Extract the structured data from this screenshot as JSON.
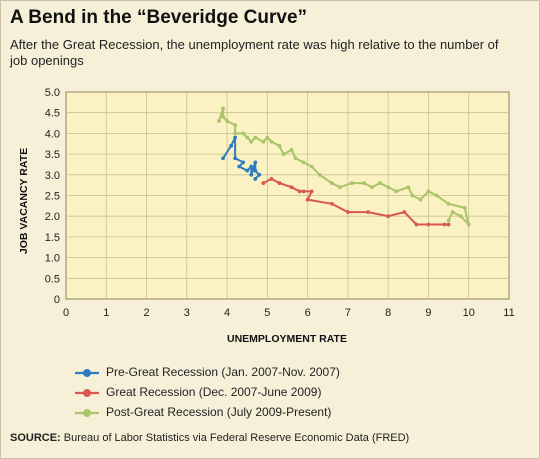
{
  "header": {
    "title": "A Bend in the “Beveridge Curve”",
    "subtitle": "After the Great Recession, the unemployment rate was high relative to the number of job openings"
  },
  "source": {
    "label": "SOURCE:",
    "text": "Bureau of Labor Statistics via Federal Reserve Economic Data (FRED)"
  },
  "colors": {
    "panel": "#f6f0d9",
    "plot": "#faf2c2",
    "grid": "#c9c08e",
    "pre": "#2e7bbf",
    "great": "#d9574f",
    "post": "#a9c46a"
  },
  "chart_data": {
    "type": "line",
    "xlabel": "UNEMPLOYMENT RATE",
    "ylabel": "JOB VACANCY RATE",
    "xlim": [
      0,
      11
    ],
    "ylim": [
      0,
      5.0
    ],
    "xticks": [
      "0",
      "1",
      "2",
      "3",
      "4",
      "5",
      "6",
      "7",
      "8",
      "9",
      "10",
      "11"
    ],
    "yticks": [
      "0",
      "0.5",
      "1.0",
      "1.5",
      "2.0",
      "2.5",
      "3.0",
      "3.5",
      "4.0",
      "4.5",
      "5.0"
    ],
    "grid": true,
    "legend_position": "bottom",
    "series": [
      {
        "name": "Pre-Great Recession (Jan. 2007-Nov. 2007)",
        "color": "#2e7bbf",
        "points": [
          [
            3.9,
            3.4
          ],
          [
            4.1,
            3.7
          ],
          [
            4.2,
            3.9
          ],
          [
            4.2,
            3.4
          ],
          [
            4.4,
            3.3
          ],
          [
            4.3,
            3.2
          ],
          [
            4.5,
            3.1
          ],
          [
            4.6,
            3.2
          ],
          [
            4.6,
            3.0
          ],
          [
            4.7,
            3.3
          ],
          [
            4.7,
            3.1
          ],
          [
            4.8,
            3.0
          ],
          [
            4.7,
            2.9
          ]
        ]
      },
      {
        "name": "Great Recession (Dec. 2007-June 2009)",
        "color": "#d9574f",
        "points": [
          [
            4.9,
            2.8
          ],
          [
            5.1,
            2.9
          ],
          [
            5.3,
            2.8
          ],
          [
            5.6,
            2.7
          ],
          [
            5.8,
            2.6
          ],
          [
            5.9,
            2.6
          ],
          [
            6.1,
            2.6
          ],
          [
            6.0,
            2.4
          ],
          [
            6.6,
            2.3
          ],
          [
            7.0,
            2.1
          ],
          [
            7.5,
            2.1
          ],
          [
            8.0,
            2.0
          ],
          [
            8.4,
            2.1
          ],
          [
            8.7,
            1.8
          ],
          [
            9.0,
            1.8
          ],
          [
            9.4,
            1.8
          ],
          [
            9.5,
            1.8
          ]
        ]
      },
      {
        "name": "Post-Great Recession (July 2009-Present)",
        "color": "#a9c46a",
        "points": [
          [
            9.5,
            1.9
          ],
          [
            9.6,
            2.1
          ],
          [
            9.8,
            2.0
          ],
          [
            10.0,
            1.8
          ],
          [
            9.9,
            2.2
          ],
          [
            9.5,
            2.3
          ],
          [
            9.2,
            2.5
          ],
          [
            9.0,
            2.6
          ],
          [
            8.8,
            2.4
          ],
          [
            8.6,
            2.5
          ],
          [
            8.5,
            2.7
          ],
          [
            8.2,
            2.6
          ],
          [
            8.0,
            2.7
          ],
          [
            7.8,
            2.8
          ],
          [
            7.6,
            2.7
          ],
          [
            7.4,
            2.8
          ],
          [
            7.1,
            2.8
          ],
          [
            6.8,
            2.7
          ],
          [
            6.6,
            2.8
          ],
          [
            6.3,
            3.0
          ],
          [
            6.1,
            3.2
          ],
          [
            5.9,
            3.3
          ],
          [
            5.7,
            3.4
          ],
          [
            5.6,
            3.6
          ],
          [
            5.4,
            3.5
          ],
          [
            5.3,
            3.7
          ],
          [
            5.1,
            3.8
          ],
          [
            5.0,
            3.9
          ],
          [
            4.9,
            3.8
          ],
          [
            4.7,
            3.9
          ],
          [
            4.6,
            3.8
          ],
          [
            4.5,
            3.9
          ],
          [
            4.4,
            4.0
          ],
          [
            4.2,
            4.0
          ],
          [
            4.2,
            4.2
          ],
          [
            4.0,
            4.3
          ],
          [
            3.9,
            4.4
          ],
          [
            3.9,
            4.6
          ],
          [
            3.8,
            4.3
          ]
        ]
      }
    ]
  }
}
